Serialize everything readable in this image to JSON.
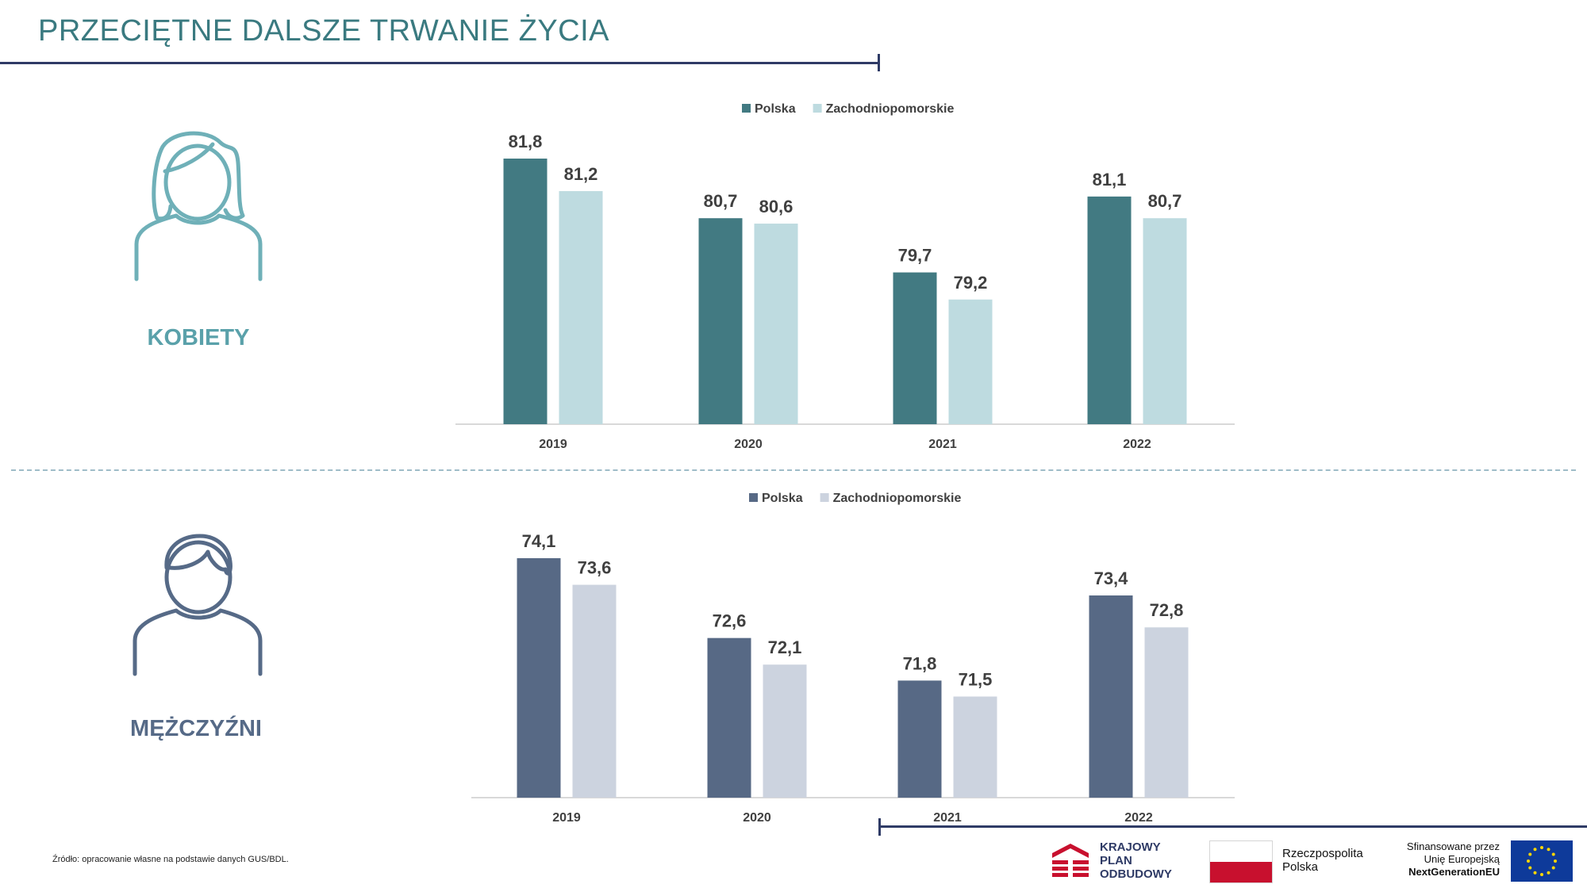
{
  "title": "PRZECIĘTNE DALSZE TRWANIE ŻYCIA",
  "sections": {
    "women_label": "KOBIETY",
    "men_label": "MĘŻCZYŹNI"
  },
  "source": "Źródło: opracowanie własne na podstawie danych GUS/BDL.",
  "logos": {
    "kpo_lines": [
      "KRAJOWY",
      "PLAN",
      "ODBUDOWY"
    ],
    "rp_lines": [
      "Rzeczpospolita",
      "Polska"
    ],
    "eu_lines": [
      "Sfinansowane przez",
      "Unię Europejską",
      "NextGenerationEU"
    ]
  },
  "colors": {
    "title": "#3a7a80",
    "women_polska": "#427a82",
    "women_region": "#bedbe0",
    "men_polska": "#576985",
    "men_region": "#ccd3df",
    "women_icon": "#6fb0b8",
    "men_icon": "#566a87"
  },
  "icons": {
    "women": "woman-user-icon",
    "men": "man-user-icon",
    "kpo": "kpo-logo-icon",
    "rp": "polish-flag-icon",
    "eu": "eu-flag-icon"
  },
  "chart_data": [
    {
      "type": "bar",
      "categories": [
        "2019",
        "2020",
        "2021",
        "2022"
      ],
      "series": [
        {
          "name": "Polska",
          "values": [
            81.8,
            80.7,
            79.7,
            81.1
          ]
        },
        {
          "name": "Zachodniopomorskie",
          "values": [
            81.2,
            80.6,
            79.2,
            80.7
          ]
        }
      ],
      "value_labels": [
        [
          "81,8",
          "80,7",
          "79,7",
          "81,1"
        ],
        [
          "81,2",
          "80,6",
          "79,2",
          "80,7"
        ]
      ],
      "legend": "top-center",
      "grid": false,
      "ylim": [
        76.9,
        81.8
      ]
    },
    {
      "type": "bar",
      "categories": [
        "2019",
        "2020",
        "2021",
        "2022"
      ],
      "series": [
        {
          "name": "Polska",
          "values": [
            74.1,
            72.6,
            71.8,
            73.4
          ]
        },
        {
          "name": "Zachodniopomorskie",
          "values": [
            73.6,
            72.1,
            71.5,
            72.8
          ]
        }
      ],
      "value_labels": [
        [
          "74,1",
          "72,6",
          "71,8",
          "73,4"
        ],
        [
          "73,6",
          "72,1",
          "71,5",
          "72,8"
        ]
      ],
      "legend": "top-center",
      "grid": false,
      "ylim": [
        69.6,
        74.1
      ]
    }
  ]
}
